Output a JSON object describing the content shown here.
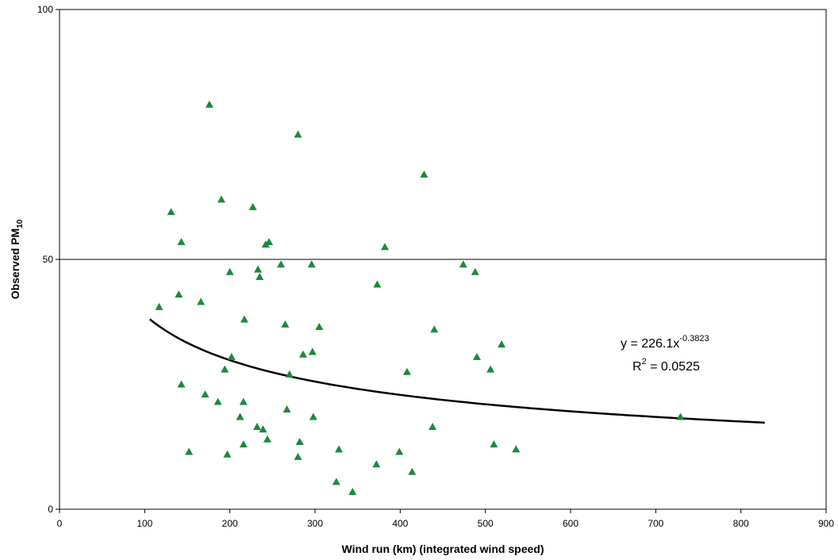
{
  "chart_data": {
    "type": "scatter",
    "title": "",
    "xlabel": "Wind run (km) (integrated wind speed)",
    "ylabel_main": "Observed PM",
    "ylabel_sub": "10",
    "xlim": [
      0,
      900
    ],
    "ylim": [
      0,
      100
    ],
    "x_ticks": [
      "0",
      "100",
      "200",
      "300",
      "400",
      "500",
      "600",
      "700",
      "800",
      "900"
    ],
    "y_ticks": [
      "0",
      "50",
      "100"
    ],
    "gridlines_y": [
      50
    ],
    "marker": "triangle",
    "marker_color": "#1a8a3a",
    "points": [
      {
        "x": 117,
        "y": 40.5
      },
      {
        "x": 131,
        "y": 59.5
      },
      {
        "x": 140,
        "y": 43
      },
      {
        "x": 143,
        "y": 53.5
      },
      {
        "x": 143,
        "y": 25
      },
      {
        "x": 152,
        "y": 11.5
      },
      {
        "x": 166,
        "y": 41.5
      },
      {
        "x": 171,
        "y": 23
      },
      {
        "x": 176,
        "y": 81
      },
      {
        "x": 186,
        "y": 21.5
      },
      {
        "x": 190,
        "y": 62
      },
      {
        "x": 194,
        "y": 28
      },
      {
        "x": 197,
        "y": 11
      },
      {
        "x": 200,
        "y": 47.5
      },
      {
        "x": 202,
        "y": 30.5
      },
      {
        "x": 212,
        "y": 18.5
      },
      {
        "x": 216,
        "y": 21.5
      },
      {
        "x": 216,
        "y": 13
      },
      {
        "x": 217,
        "y": 38
      },
      {
        "x": 227,
        "y": 60.5
      },
      {
        "x": 232,
        "y": 16.5
      },
      {
        "x": 233,
        "y": 48
      },
      {
        "x": 235,
        "y": 46.5
      },
      {
        "x": 239,
        "y": 16
      },
      {
        "x": 242,
        "y": 53
      },
      {
        "x": 244,
        "y": 14
      },
      {
        "x": 246,
        "y": 53.5
      },
      {
        "x": 260,
        "y": 49
      },
      {
        "x": 265,
        "y": 37
      },
      {
        "x": 267,
        "y": 20
      },
      {
        "x": 270,
        "y": 27
      },
      {
        "x": 280,
        "y": 75
      },
      {
        "x": 280,
        "y": 10.5
      },
      {
        "x": 282,
        "y": 13.5
      },
      {
        "x": 286,
        "y": 31
      },
      {
        "x": 296,
        "y": 49
      },
      {
        "x": 297,
        "y": 31.5
      },
      {
        "x": 298,
        "y": 18.5
      },
      {
        "x": 305,
        "y": 36.5
      },
      {
        "x": 325,
        "y": 5.5
      },
      {
        "x": 328,
        "y": 12
      },
      {
        "x": 344,
        "y": 3.5
      },
      {
        "x": 372,
        "y": 9
      },
      {
        "x": 373,
        "y": 45
      },
      {
        "x": 382,
        "y": 52.5
      },
      {
        "x": 399,
        "y": 11.5
      },
      {
        "x": 408,
        "y": 27.5
      },
      {
        "x": 414,
        "y": 7.5
      },
      {
        "x": 428,
        "y": 67
      },
      {
        "x": 438,
        "y": 16.5
      },
      {
        "x": 440,
        "y": 36
      },
      {
        "x": 474,
        "y": 49
      },
      {
        "x": 488,
        "y": 47.5
      },
      {
        "x": 490,
        "y": 30.5
      },
      {
        "x": 506,
        "y": 28
      },
      {
        "x": 510,
        "y": 13
      },
      {
        "x": 519,
        "y": 33
      },
      {
        "x": 536,
        "y": 12
      },
      {
        "x": 729,
        "y": 18.5
      }
    ],
    "trendline": {
      "type": "power",
      "a": 226.1,
      "b": -0.3823,
      "x_range": [
        106,
        828
      ],
      "equation_prefix": "y = 226.1x",
      "equation_exponent": "-0.3823",
      "r2_prefix": "R",
      "r2_exponent": "2",
      "r2_suffix": " = 0.0525"
    }
  }
}
